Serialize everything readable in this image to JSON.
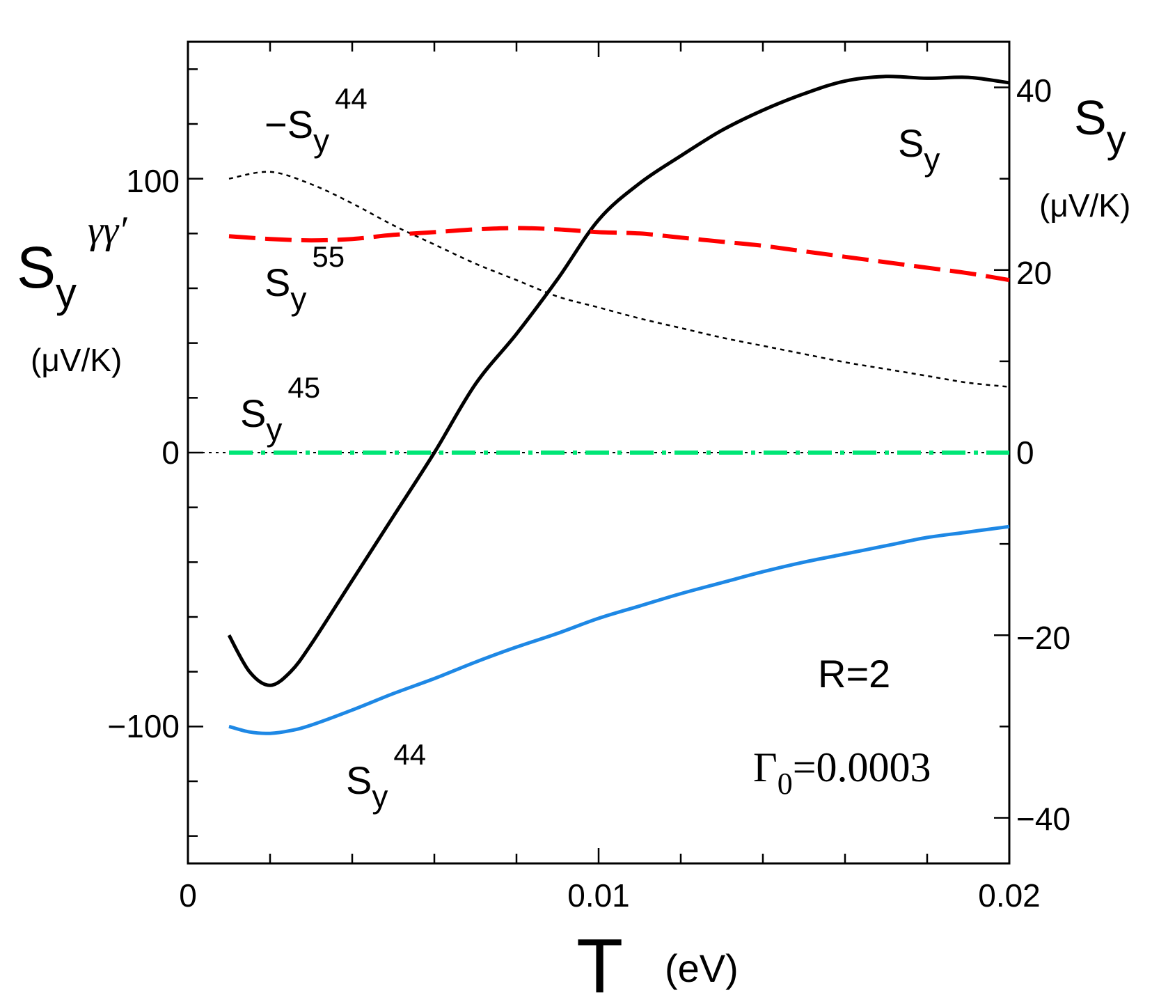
{
  "chart_data": {
    "type": "line",
    "title": "",
    "xlabel": {
      "symbol": "T",
      "unit": "(eV)"
    },
    "ylabel_left": {
      "base": "S",
      "sub": "y",
      "sup": "γγ′",
      "unit": "(μV/K)"
    },
    "ylabel_right": {
      "base": "S",
      "sub": "y",
      "unit": "(μV/K)"
    },
    "xlim": [
      0,
      0.02
    ],
    "ylim_left": [
      -150,
      150
    ],
    "ylim_right": [
      -45,
      45
    ],
    "x_ticks": [
      "0",
      "0.01",
      "0.02"
    ],
    "y_left_ticks": [
      "100",
      "0",
      "−100"
    ],
    "y_right_ticks": [
      "40",
      "20",
      "0",
      "−20",
      "−40"
    ],
    "grid": false,
    "series": [
      {
        "name": "S_y",
        "axis": "right",
        "color": "#000000",
        "style": "solid",
        "x": [
          0.001,
          0.0015,
          0.002,
          0.0025,
          0.003,
          0.004,
          0.005,
          0.006,
          0.007,
          0.008,
          0.009,
          0.01,
          0.011,
          0.012,
          0.013,
          0.014,
          0.015,
          0.016,
          0.017,
          0.018,
          0.019,
          0.02
        ],
        "values": [
          -20,
          -24,
          -25.5,
          -24,
          -21,
          -14,
          -7,
          0,
          7.5,
          13,
          19,
          25.5,
          29.5,
          32.5,
          35.3,
          37.5,
          39.3,
          40.7,
          41.2,
          41.0,
          41.1,
          40.5
        ]
      },
      {
        "name": "−S_y^44",
        "axis": "left",
        "color": "#000000",
        "style": "dotted",
        "x": [
          0.001,
          0.002,
          0.003,
          0.004,
          0.005,
          0.006,
          0.007,
          0.008,
          0.009,
          0.01,
          0.011,
          0.012,
          0.013,
          0.014,
          0.015,
          0.016,
          0.017,
          0.018,
          0.019,
          0.02
        ],
        "values": [
          100,
          102.5,
          98,
          91,
          83,
          76,
          69,
          63,
          57,
          53,
          49,
          45.5,
          42,
          39,
          36,
          33,
          30.5,
          28,
          25.5,
          24
        ]
      },
      {
        "name": "S_y^55",
        "axis": "left",
        "color": "#ff0000",
        "style": "dashed",
        "x": [
          0.001,
          0.002,
          0.003,
          0.004,
          0.005,
          0.006,
          0.007,
          0.008,
          0.009,
          0.01,
          0.011,
          0.012,
          0.013,
          0.014,
          0.015,
          0.016,
          0.017,
          0.018,
          0.019,
          0.02
        ],
        "values": [
          79,
          78,
          77.5,
          78,
          79.5,
          80.5,
          81.5,
          82,
          81.5,
          80.5,
          80,
          78.5,
          77,
          75.5,
          73.5,
          71.5,
          69.5,
          67.5,
          65.5,
          63
        ]
      },
      {
        "name": "S_y^45",
        "axis": "left",
        "color": "#00e676",
        "style": "dashdot",
        "x": [
          0.001,
          0.02
        ],
        "values": [
          0,
          0
        ]
      },
      {
        "name": "S_y^44",
        "axis": "left",
        "color": "#1e88e5",
        "style": "solid",
        "x": [
          0.001,
          0.0015,
          0.002,
          0.0025,
          0.003,
          0.004,
          0.005,
          0.006,
          0.007,
          0.008,
          0.009,
          0.01,
          0.011,
          0.012,
          0.013,
          0.014,
          0.015,
          0.016,
          0.017,
          0.018,
          0.019,
          0.02
        ],
        "values": [
          -100,
          -102,
          -102.5,
          -101.5,
          -99.5,
          -94,
          -88,
          -82.5,
          -76.5,
          -71,
          -66,
          -60.5,
          -56,
          -51.5,
          -47.5,
          -43.5,
          -40,
          -37,
          -34,
          -31,
          -29,
          -27
        ]
      }
    ],
    "annotations": {
      "label_sy": {
        "base": "S",
        "sub": "y"
      },
      "label_neg_s44": {
        "base": "−S",
        "sub": "y",
        "sup": "44"
      },
      "label_s55": {
        "base": "S",
        "sub": "y",
        "sup": "55"
      },
      "label_s45": {
        "base": "S",
        "sub": "y",
        "sup": "45"
      },
      "label_s44": {
        "base": "S",
        "sub": "y",
        "sup": "44"
      },
      "param_r": "R=2",
      "param_gamma": {
        "base": "Γ",
        "sub": "0",
        "value": "=0.0003"
      }
    }
  }
}
